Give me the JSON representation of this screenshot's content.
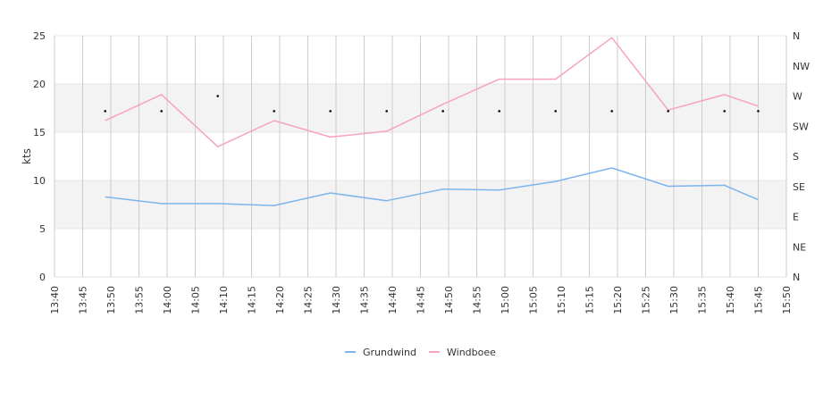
{
  "chart_data": {
    "type": "line",
    "ylabel": "kts",
    "ylim": [
      0,
      25
    ],
    "y_ticks": [
      "0",
      "5",
      "10",
      "15",
      "20",
      "25"
    ],
    "bands": [
      [
        5,
        10
      ],
      [
        15,
        20
      ]
    ],
    "x_ticks": [
      "13:40",
      "13:45",
      "13:50",
      "13:55",
      "14:00",
      "14:05",
      "14:10",
      "14:15",
      "14:20",
      "14:25",
      "14:30",
      "14:35",
      "14:40",
      "14:45",
      "14:50",
      "14:55",
      "15:00",
      "15:05",
      "15:10",
      "15:15",
      "15:20",
      "15:25",
      "15:30",
      "15:35",
      "15:40",
      "15:45",
      "15:50"
    ],
    "x": [
      "13:49",
      "13:59",
      "14:09",
      "14:19",
      "14:29",
      "14:39",
      "14:49",
      "14:59",
      "15:09",
      "15:19",
      "15:29",
      "15:39",
      "15:45"
    ],
    "series": [
      {
        "name": "Grundwind",
        "color": "#7cb5ec",
        "values": [
          8.3,
          7.6,
          7.6,
          7.4,
          8.7,
          7.9,
          9.1,
          9.0,
          9.9,
          11.3,
          9.4,
          9.5,
          8.0
        ]
      },
      {
        "name": "Windboee",
        "color": "#f7a1c4",
        "values": [
          16.2,
          18.9,
          13.5,
          16.2,
          14.5,
          15.1,
          17.9,
          20.5,
          20.5,
          24.8,
          17.3,
          18.9,
          17.7
        ]
      }
    ],
    "direction_axis_labels": [
      "N",
      "NW",
      "W",
      "SW",
      "S",
      "SE",
      "E",
      "NE",
      "N"
    ],
    "direction_x": [
      "13:49",
      "13:59",
      "14:09",
      "14:19",
      "14:29",
      "14:39",
      "14:49",
      "14:59",
      "15:09",
      "15:19",
      "15:29",
      "15:39",
      "15:45"
    ],
    "direction_degrees": [
      247.5,
      247.5,
      270,
      247.5,
      247.5,
      247.5,
      247.5,
      247.5,
      247.5,
      247.5,
      247.5,
      247.5,
      247.5
    ]
  }
}
